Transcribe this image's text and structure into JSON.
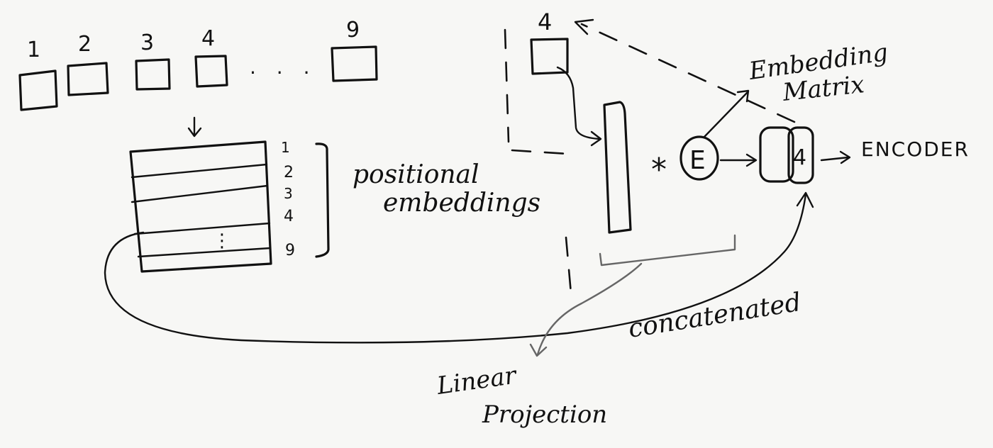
{
  "patches": {
    "numbers": [
      "1",
      "2",
      "3",
      "4",
      "9"
    ],
    "ellipsis": ". . ."
  },
  "table": {
    "row_numbers": [
      "1",
      "2",
      "3",
      "4",
      "9"
    ],
    "ellipsis": "⋮"
  },
  "labels": {
    "positional_line1": "positional",
    "positional_line2": "embeddings",
    "embedding_matrix_line1": "Embedding",
    "embedding_matrix_line2": "Matrix",
    "concatenated": "concatenated",
    "linear_projection_line1": "Linear",
    "linear_projection_line2": "Projection",
    "encoder": "ENCODER",
    "selected_patch_number": "4",
    "multiply_symbol": "*",
    "embedding_letter": "E",
    "output_token": "4"
  }
}
